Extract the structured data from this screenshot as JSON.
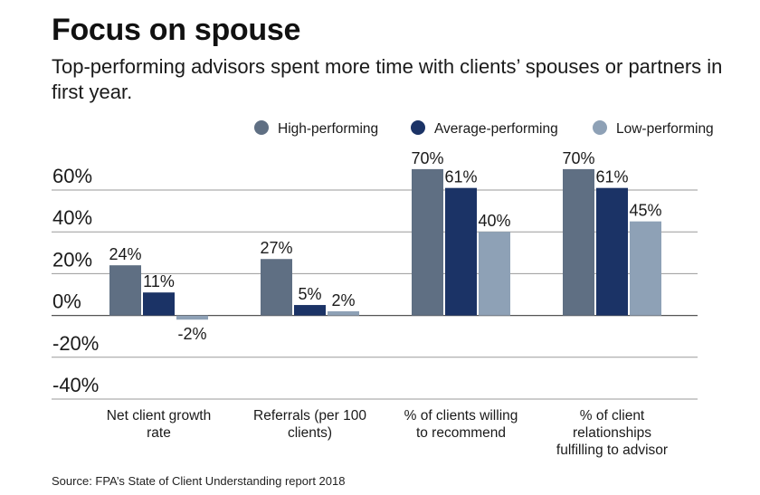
{
  "header": {
    "title": "Focus on spouse",
    "subtitle": "Top-performing advisors spent more time with clients’ spouses or partners in first year."
  },
  "footer": {
    "source": "Source: FPA’s State of Client Understanding report 2018"
  },
  "chart_data": {
    "type": "bar",
    "title": "Focus on spouse",
    "xlabel": "",
    "ylabel": "",
    "ylim": [
      -40,
      60
    ],
    "yticks": [
      60,
      40,
      20,
      0,
      -20,
      -40
    ],
    "ytick_labels": [
      "60%",
      "40%",
      "20%",
      "0%",
      "-20%",
      "-40%"
    ],
    "grid": true,
    "legend_position": "top-right",
    "categories": [
      [
        "Net client growth",
        "rate"
      ],
      [
        "Referrals (per 100",
        "clients)"
      ],
      [
        "% of clients willing",
        "to recommend"
      ],
      [
        "% of client",
        "relationships",
        "fulfilling to advisor"
      ]
    ],
    "series": [
      {
        "name": "High-performing",
        "color": "#5f6f83",
        "values": [
          24,
          27,
          70,
          70
        ],
        "labels": [
          "24%",
          "27%",
          "70%",
          "70%"
        ]
      },
      {
        "name": "Average-performing",
        "color": "#1b3366",
        "values": [
          11,
          5,
          61,
          61
        ],
        "labels": [
          "11%",
          "5%",
          "61%",
          "61%"
        ]
      },
      {
        "name": "Low-performing",
        "color": "#8ea1b6",
        "values": [
          -2,
          2,
          40,
          45
        ],
        "labels": [
          "-2%",
          "2%",
          "40%",
          "45%"
        ]
      }
    ]
  }
}
